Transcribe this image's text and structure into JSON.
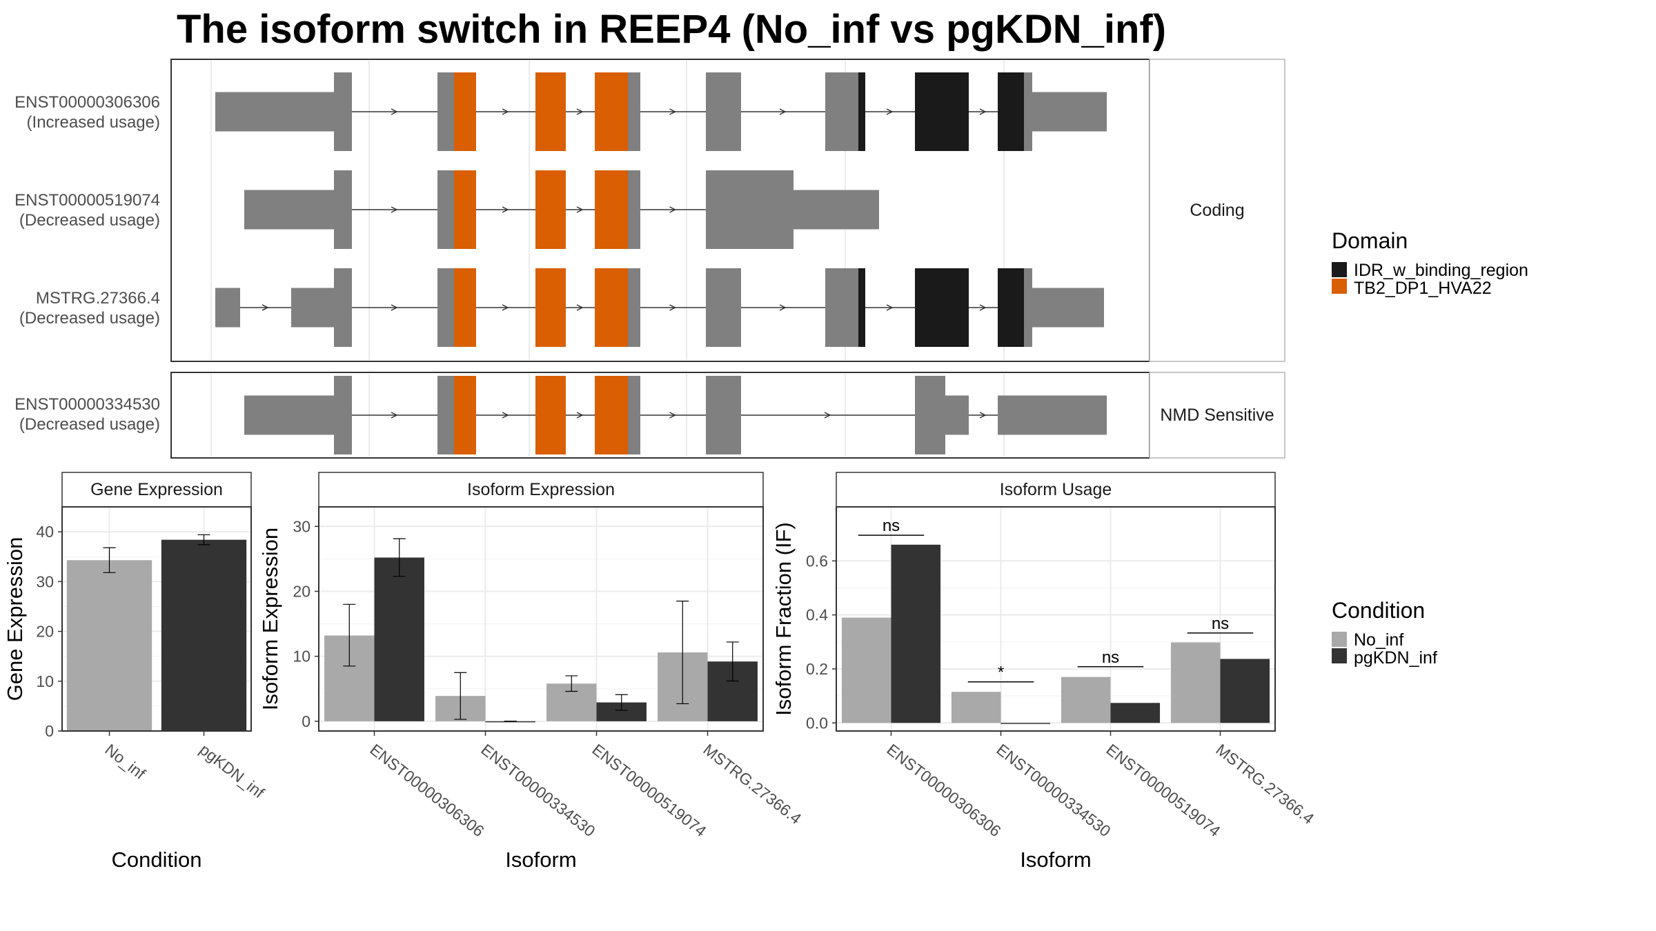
{
  "title": "The isoform switch in REEP4 (No_inf vs pgKDN_inf)",
  "colors": {
    "exon": "#808080",
    "IDR_w_binding_region": "#1a1a1a",
    "TB2_DP1_HVA22": "#d95f02",
    "No_inf": "#a9a9a9",
    "pgKDN_inf": "#333333"
  },
  "structure": {
    "panels": [
      {
        "strip": "Coding"
      },
      {
        "strip": "NMD Sensitive"
      }
    ],
    "isoforms": [
      {
        "id": "ENST00000306306",
        "label": "(Increased usage)",
        "panel": 0
      },
      {
        "id": "ENST00000519074",
        "label": "(Decreased usage)",
        "panel": 0
      },
      {
        "id": "MSTRG.27366.4",
        "label": "(Decreased usage)",
        "panel": 0
      },
      {
        "id": "ENST00000334530",
        "label": "(Decreased usage)",
        "panel": 1
      }
    ]
  },
  "legend_domain": {
    "title": "Domain",
    "items": [
      "IDR_w_binding_region",
      "TB2_DP1_HVA22"
    ]
  },
  "legend_condition": {
    "title": "Condition",
    "items": [
      "No_inf",
      "pgKDN_inf"
    ]
  },
  "chart_data": [
    {
      "type": "bar",
      "title": "Gene Expression",
      "xlabel": "Condition",
      "ylabel": "Gene Expression",
      "categories": [
        "No_inf",
        "pgKDN_inf"
      ],
      "values": [
        34.3,
        38.4
      ],
      "errors": [
        [
          31.8,
          36.8
        ],
        [
          37.4,
          39.4
        ]
      ],
      "ylim": [
        0,
        45
      ],
      "yticks": [
        0,
        10,
        20,
        30,
        40
      ]
    },
    {
      "type": "bar",
      "title": "Isoform Expression",
      "xlabel": "Isoform",
      "ylabel": "Isoform Expression",
      "categories": [
        "ENST00000306306",
        "ENST00000334530",
        "ENST00000519074",
        "MSTRG.27366.4"
      ],
      "series": [
        {
          "name": "No_inf",
          "values": [
            13.2,
            3.9,
            5.8,
            10.6
          ],
          "errors": [
            [
              8.5,
              18.0
            ],
            [
              0.3,
              7.5
            ],
            [
              4.6,
              7.0
            ],
            [
              2.7,
              18.5
            ]
          ]
        },
        {
          "name": "pgKDN_inf",
          "values": [
            25.2,
            0.0,
            2.9,
            9.2
          ],
          "errors": [
            [
              22.3,
              28.1
            ],
            [
              0.0,
              0.0
            ],
            [
              1.7,
              4.1
            ],
            [
              6.2,
              12.2
            ]
          ]
        }
      ],
      "ylim": [
        -1.5,
        33
      ],
      "yticks": [
        0,
        10,
        20,
        30
      ]
    },
    {
      "type": "bar",
      "title": "Isoform Usage",
      "xlabel": "Isoform",
      "ylabel": "Isoform Fraction (IF)",
      "categories": [
        "ENST00000306306",
        "ENST00000334530",
        "ENST00000519074",
        "MSTRG.27366.4"
      ],
      "series": [
        {
          "name": "No_inf",
          "values": [
            0.39,
            0.115,
            0.17,
            0.298
          ]
        },
        {
          "name": "pgKDN_inf",
          "values": [
            0.66,
            0.0,
            0.074,
            0.237
          ]
        }
      ],
      "significance": [
        "ns",
        "*",
        "ns",
        "ns"
      ],
      "significance_y": [
        0.695,
        0.152,
        0.208,
        0.333
      ],
      "ylim": [
        -0.03,
        0.8
      ],
      "yticks": [
        0.0,
        0.2,
        0.4,
        0.6
      ],
      "ytick_labels": [
        "0.0",
        "0.2",
        "0.4",
        "0.6"
      ]
    }
  ]
}
